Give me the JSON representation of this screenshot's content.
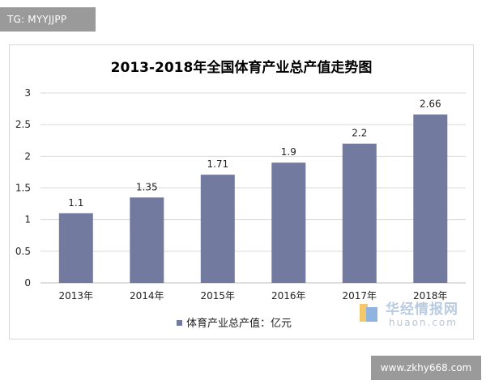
{
  "top_tag": "TG: MYYJJPP",
  "bottom_tag": "www.zkhy668.com",
  "watermark": {
    "title": "华经情报网",
    "subtitle": "huaon.com"
  },
  "colors": {
    "bar": "#737aa0",
    "grid": "#d9d9d9",
    "axis_text": "#222222",
    "title": "#000000"
  },
  "chart_data": {
    "type": "bar",
    "title": "2013-2018年全国体育产业总产值走势图",
    "categories": [
      "2013年",
      "2014年",
      "2015年",
      "2016年",
      "2017年",
      "2018年"
    ],
    "series": [
      {
        "name": "体育产业总产值：亿元",
        "values": [
          1.1,
          1.35,
          1.71,
          1.9,
          2.2,
          2.66
        ],
        "labels": [
          "1.1",
          "1.35",
          "1.71",
          "1.9",
          "2.2",
          "2.66"
        ]
      }
    ],
    "y_ticks": [
      "0",
      "0.5",
      "1",
      "1.5",
      "2",
      "2.5",
      "3"
    ],
    "ylim": [
      0,
      3
    ],
    "grid": true,
    "legend_position": "bottom"
  }
}
